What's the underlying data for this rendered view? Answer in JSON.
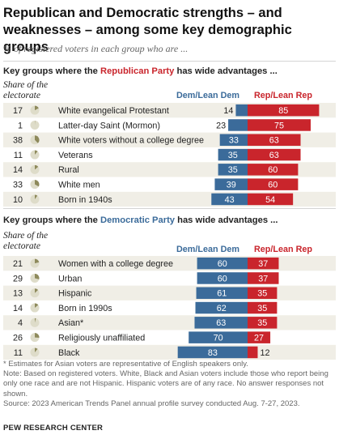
{
  "title": "Republican and Democratic strengths – and weaknesses – among some key demographic groups",
  "subtitle": "% of registered voters in each group who are ...",
  "sections": [
    {
      "title_before": "Key groups where the ",
      "party": "Republican Party",
      "party_kind": "rep",
      "title_after": " has wide advantages ...",
      "share_label": "Share of the electorate"
    },
    {
      "title_before": "Key groups where the ",
      "party": "Democratic Party",
      "party_kind": "dem",
      "title_after": " has wide advantages ...",
      "share_label": "Share of the electorate"
    }
  ],
  "columns": {
    "dem": "Dem/Lean Dem",
    "rep": "Rep/Lean Rep"
  },
  "footnotes": [
    "* Estimates for Asian voters are representative of English speakers only.",
    "Note: Based on registered voters. White, Black and Asian voters include those who report being only one race and are not Hispanic. Hispanic voters are of any race. No answer responses not shown.",
    "Source: 2023 American Trends Panel annual profile survey conducted Aug. 7-27, 2023."
  ],
  "org": "PEW RESEARCH CENTER",
  "colors": {
    "dem": "#3b6b9a",
    "rep": "#c9252c",
    "row_stripe": "#f0eee6",
    "pie_bg": "#dedcc9",
    "pie_fill": "#8e8a5c"
  },
  "chart_data": [
    {
      "type": "bar",
      "layout": "diverging",
      "categories": [
        "White evangelical Protestant",
        "Latter-day Saint (Mormon)",
        "White voters without a college degree",
        "Veterans",
        "Rural",
        "White men",
        "Born in 1940s"
      ],
      "share_of_electorate": [
        17,
        1,
        38,
        11,
        14,
        33,
        10
      ],
      "series": [
        {
          "name": "Dem/Lean Dem",
          "values": [
            14,
            23,
            33,
            35,
            35,
            39,
            43
          ]
        },
        {
          "name": "Rep/Lean Rep",
          "values": [
            85,
            75,
            63,
            63,
            60,
            60,
            54
          ]
        }
      ]
    },
    {
      "type": "bar",
      "layout": "diverging",
      "categories": [
        "Women with a college degree",
        "Urban",
        "Hispanic",
        "Born in 1990s",
        "Asian*",
        "Religiously unaffiliated",
        "Black"
      ],
      "share_of_electorate": [
        21,
        29,
        13,
        14,
        4,
        26,
        11
      ],
      "series": [
        {
          "name": "Dem/Lean Dem",
          "values": [
            60,
            60,
            61,
            62,
            63,
            70,
            83
          ]
        },
        {
          "name": "Rep/Lean Rep",
          "values": [
            37,
            37,
            35,
            35,
            35,
            27,
            12
          ]
        }
      ]
    }
  ]
}
